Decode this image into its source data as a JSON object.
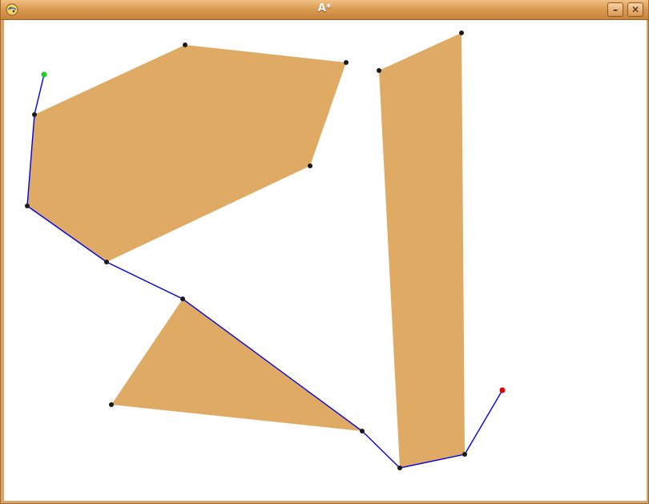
{
  "window": {
    "title": "A*",
    "app_icon": "python-icon",
    "minimize_icon": "minimize-icon",
    "close_icon": "close-icon",
    "minimize_glyph": "–",
    "close_glyph": "✕"
  },
  "colors": {
    "obstacle_fill": "#dfaa63",
    "path_line": "#0000ee",
    "vertex": "#1a1a1a",
    "start_node": "#22cc22",
    "goal_node": "#dd0000",
    "titlebar": "#dc9c55"
  }
}
